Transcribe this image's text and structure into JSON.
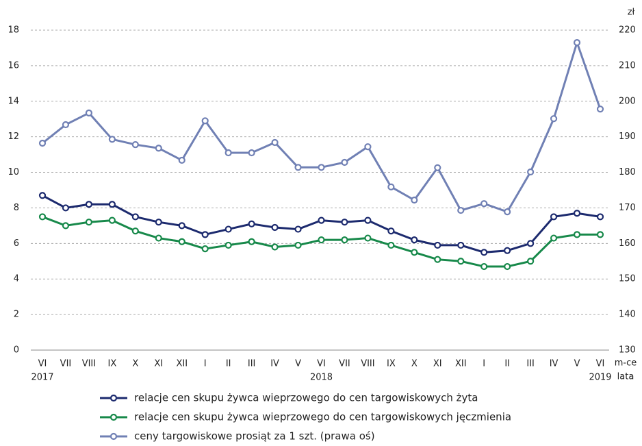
{
  "chart_data": {
    "type": "line",
    "categories": [
      "VI",
      "VII",
      "VIII",
      "IX",
      "X",
      "XI",
      "XII",
      "I",
      "II",
      "III",
      "IV",
      "V",
      "VI",
      "VII",
      "VIII",
      "IX",
      "X",
      "XI",
      "XII",
      "I",
      "II",
      "III",
      "IV",
      "V",
      "VI"
    ],
    "x_groups": [
      "2017",
      null,
      null,
      null,
      null,
      null,
      null,
      null,
      null,
      null,
      null,
      null,
      "2018",
      null,
      null,
      null,
      null,
      null,
      null,
      null,
      null,
      null,
      null,
      null,
      "2019"
    ],
    "x_label_month": "m-ce",
    "x_label_year": "lata",
    "y2_label": "zł",
    "ylim": [
      0,
      18
    ],
    "yticks": [
      0,
      2,
      4,
      6,
      8,
      10,
      12,
      14,
      16,
      18
    ],
    "y2lim": [
      130,
      220
    ],
    "y2ticks": [
      130,
      140,
      150,
      160,
      170,
      180,
      190,
      200,
      210,
      220
    ],
    "grid": true,
    "legend": "bottom",
    "series": [
      {
        "name": "relacje cen skupu żywca wieprzowego do cen targowiskowych żyta",
        "color": "#1c2a6e",
        "values": [
          8.7,
          8.0,
          8.2,
          8.2,
          7.5,
          7.2,
          7.0,
          6.5,
          6.8,
          7.1,
          6.9,
          6.8,
          7.3,
          7.2,
          7.3,
          6.7,
          6.2,
          5.9,
          5.9,
          5.5,
          5.6,
          6.0,
          7.5,
          7.7,
          7.5
        ]
      },
      {
        "name": "relacje cen skupu żywca wieprzowego do cen targowiskowych jęczmienia",
        "color": "#17894a",
        "values": [
          7.5,
          7.0,
          7.2,
          7.3,
          6.7,
          6.3,
          6.1,
          5.7,
          5.9,
          6.1,
          5.8,
          5.9,
          6.2,
          6.2,
          6.3,
          5.9,
          5.5,
          5.1,
          5.0,
          4.7,
          4.7,
          5.0,
          6.3,
          6.5,
          6.5
        ]
      },
      {
        "name": "ceny targowiskowe prosiąt za 1 szt. (prawa oś)",
        "color": "#7080b4",
        "axis": "y2",
        "values": [
          188.2,
          193.4,
          196.7,
          189.3,
          187.8,
          186.8,
          183.4,
          194.5,
          185.5,
          185.5,
          188.4,
          181.4,
          181.4,
          182.8,
          187.2,
          175.9,
          172.2,
          181.3,
          169.3,
          171.2,
          168.9,
          180.1,
          195.1,
          216.5,
          197.8
        ]
      }
    ]
  }
}
